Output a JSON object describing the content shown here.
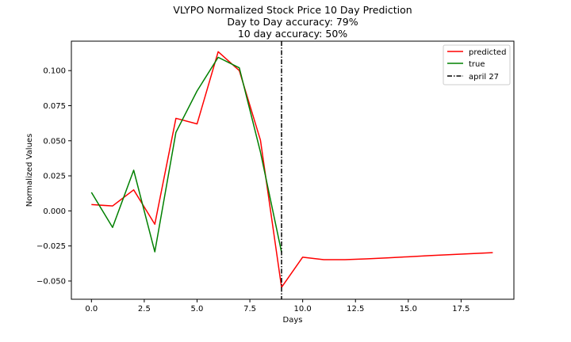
{
  "chart_data": {
    "type": "line",
    "title": [
      "VLYPO Normalized Stock Price 10 Day Prediction",
      "Day to Day accuracy: 79%",
      "10 day accuracy: 50%"
    ],
    "xlabel": "Days",
    "ylabel": "Normalized Values",
    "xlim": [
      -0.95,
      20.0
    ],
    "ylim": [
      -0.063,
      0.121
    ],
    "xticks": [
      0.0,
      2.5,
      5.0,
      7.5,
      10.0,
      12.5,
      15.0,
      17.5
    ],
    "xtick_labels": [
      "0.0",
      "2.5",
      "5.0",
      "7.5",
      "10.0",
      "12.5",
      "15.0",
      "17.5"
    ],
    "yticks": [
      -0.05,
      -0.025,
      0.0,
      0.025,
      0.05,
      0.075,
      0.1
    ],
    "ytick_labels": [
      "−0.050",
      "−0.025",
      "0.000",
      "0.025",
      "0.050",
      "0.075",
      "0.100"
    ],
    "grid": false,
    "legend_position": "top-right",
    "series": [
      {
        "name": "predicted",
        "color": "#ff0000",
        "x": [
          0,
          1,
          2,
          3,
          4,
          5,
          6,
          7,
          8,
          9,
          10,
          11,
          12,
          13,
          14,
          15,
          16,
          17,
          18,
          19
        ],
        "y": [
          0.0045,
          0.0035,
          0.015,
          -0.0095,
          0.066,
          0.062,
          0.1135,
          0.1,
          0.0505,
          -0.0545,
          -0.033,
          -0.0348,
          -0.0348,
          -0.0342,
          -0.0335,
          -0.0327,
          -0.0319,
          -0.0312,
          -0.0305,
          -0.0298
        ]
      },
      {
        "name": "true",
        "color": "#008000",
        "x": [
          0,
          1,
          2,
          3,
          4,
          5,
          6,
          7,
          8,
          9
        ],
        "y": [
          0.0132,
          -0.0118,
          0.029,
          -0.0292,
          0.056,
          0.0855,
          0.1095,
          0.102,
          0.042,
          -0.0295
        ]
      }
    ],
    "vline": {
      "name": "april 27",
      "x": 9,
      "color": "#000000"
    }
  }
}
